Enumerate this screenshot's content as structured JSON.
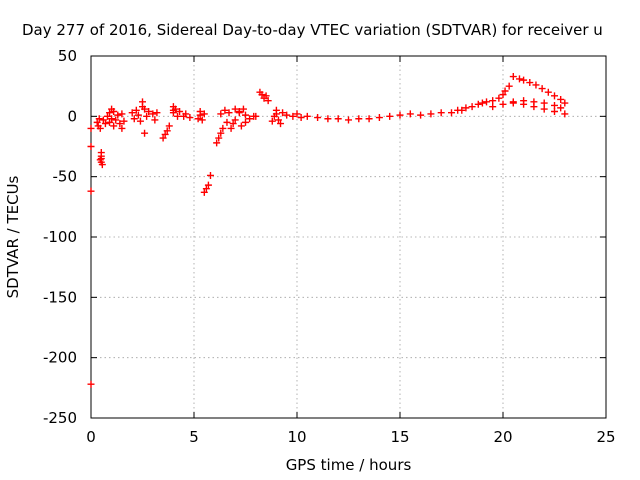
{
  "chart_data": {
    "type": "scatter",
    "title": "Day 277 of 2016, Sidereal Day-to-day VTEC variation (SDTVAR) for receiver u",
    "xlabel": "GPS time / hours",
    "ylabel": "SDTVAR / TECUs",
    "xlim": [
      0,
      25
    ],
    "ylim": [
      -250,
      50
    ],
    "x_ticks": [
      0,
      5,
      10,
      15,
      20,
      25
    ],
    "y_ticks": [
      -250,
      -200,
      -150,
      -100,
      -50,
      0,
      50
    ],
    "x_tick_labels": [
      "0",
      "5",
      "10",
      "15",
      "20",
      "25"
    ],
    "y_tick_labels": [
      "-250",
      "-200",
      "-150",
      "-100",
      "-50",
      "0",
      "50"
    ],
    "grid": true,
    "marker": "+",
    "series": [
      {
        "color": "#ff0000",
        "points": [
          [
            0.0,
            -10
          ],
          [
            0.0,
            -25
          ],
          [
            0.0,
            -62
          ],
          [
            0.0,
            -222
          ],
          [
            0.3,
            -5
          ],
          [
            0.35,
            -8
          ],
          [
            0.4,
            -2
          ],
          [
            0.45,
            -10
          ],
          [
            0.5,
            -30
          ],
          [
            0.5,
            -35
          ],
          [
            0.5,
            -38
          ],
          [
            0.55,
            -40
          ],
          [
            0.5,
            -33
          ],
          [
            0.45,
            -36
          ],
          [
            0.6,
            -3
          ],
          [
            0.7,
            -6
          ],
          [
            0.8,
            0
          ],
          [
            0.9,
            3
          ],
          [
            0.9,
            -5
          ],
          [
            1.0,
            6
          ],
          [
            1.0,
            -2
          ],
          [
            1.1,
            4
          ],
          [
            1.1,
            -8
          ],
          [
            1.2,
            -3
          ],
          [
            1.3,
            1
          ],
          [
            1.4,
            -6
          ],
          [
            1.5,
            -10
          ],
          [
            1.5,
            2
          ],
          [
            1.6,
            -4
          ],
          [
            2.0,
            3
          ],
          [
            2.1,
            -2
          ],
          [
            2.2,
            5
          ],
          [
            2.3,
            1
          ],
          [
            2.4,
            -4
          ],
          [
            2.5,
            12
          ],
          [
            2.5,
            8
          ],
          [
            2.6,
            6
          ],
          [
            2.6,
            -14
          ],
          [
            2.7,
            0
          ],
          [
            2.8,
            4
          ],
          [
            3.0,
            2
          ],
          [
            3.1,
            -3
          ],
          [
            3.2,
            3
          ],
          [
            3.5,
            -18
          ],
          [
            3.6,
            -15
          ],
          [
            3.7,
            -12
          ],
          [
            3.8,
            -8
          ],
          [
            4.0,
            8
          ],
          [
            4.0,
            5
          ],
          [
            4.0,
            3
          ],
          [
            4.1,
            6
          ],
          [
            4.2,
            0
          ],
          [
            4.3,
            4
          ],
          [
            4.5,
            0
          ],
          [
            4.6,
            2
          ],
          [
            4.8,
            -1
          ],
          [
            5.2,
            -2
          ],
          [
            5.3,
            1
          ],
          [
            5.3,
            4
          ],
          [
            5.4,
            -3
          ],
          [
            5.5,
            2
          ],
          [
            5.5,
            -63
          ],
          [
            5.6,
            -60
          ],
          [
            5.7,
            -57
          ],
          [
            5.8,
            -49
          ],
          [
            6.1,
            -22
          ],
          [
            6.2,
            -18
          ],
          [
            6.3,
            -14
          ],
          [
            6.4,
            -10
          ],
          [
            6.3,
            2
          ],
          [
            6.5,
            5
          ],
          [
            6.7,
            3
          ],
          [
            6.6,
            -5
          ],
          [
            6.8,
            -10
          ],
          [
            6.9,
            -6
          ],
          [
            7.0,
            -3
          ],
          [
            7.2,
            4
          ],
          [
            7.4,
            6
          ],
          [
            7.3,
            -8
          ],
          [
            7.5,
            -5
          ],
          [
            7.7,
            -2
          ],
          [
            7.9,
            0
          ],
          [
            7.0,
            6
          ],
          [
            7.2,
            3
          ],
          [
            7.5,
            1
          ],
          [
            8.0,
            0
          ],
          [
            8.2,
            20
          ],
          [
            8.3,
            18
          ],
          [
            8.4,
            15
          ],
          [
            8.5,
            17
          ],
          [
            8.6,
            13
          ],
          [
            8.8,
            -4
          ],
          [
            8.9,
            0
          ],
          [
            9.0,
            2
          ],
          [
            9.0,
            5
          ],
          [
            9.1,
            -3
          ],
          [
            9.2,
            -6
          ],
          [
            9.3,
            3
          ],
          [
            9.5,
            1
          ],
          [
            9.8,
            0
          ],
          [
            10.0,
            2
          ],
          [
            10.2,
            -1
          ],
          [
            10.5,
            0
          ],
          [
            11.0,
            -1
          ],
          [
            11.5,
            -2
          ],
          [
            12.0,
            -2
          ],
          [
            12.5,
            -3
          ],
          [
            13.0,
            -2
          ],
          [
            13.5,
            -2
          ],
          [
            14.0,
            -1
          ],
          [
            14.5,
            0
          ],
          [
            15.0,
            1
          ],
          [
            15.5,
            2
          ],
          [
            16.0,
            1
          ],
          [
            16.5,
            2
          ],
          [
            17.0,
            3
          ],
          [
            17.5,
            3
          ],
          [
            17.8,
            5
          ],
          [
            18.0,
            5
          ],
          [
            18.2,
            7
          ],
          [
            18.5,
            8
          ],
          [
            18.8,
            10
          ],
          [
            19.0,
            11
          ],
          [
            19.2,
            12
          ],
          [
            19.5,
            13
          ],
          [
            19.8,
            15
          ],
          [
            20.0,
            18
          ],
          [
            20.1,
            21
          ],
          [
            20.3,
            25
          ],
          [
            19.5,
            8
          ],
          [
            20.0,
            10
          ],
          [
            20.5,
            11
          ],
          [
            21.0,
            10
          ],
          [
            21.5,
            8
          ],
          [
            22.0,
            6
          ],
          [
            22.5,
            4
          ],
          [
            23.0,
            2
          ],
          [
            20.5,
            33
          ],
          [
            20.8,
            31
          ],
          [
            21.0,
            30
          ],
          [
            21.3,
            28
          ],
          [
            21.6,
            26
          ],
          [
            21.9,
            23
          ],
          [
            22.2,
            20
          ],
          [
            22.5,
            17
          ],
          [
            22.8,
            14
          ],
          [
            23.0,
            11
          ],
          [
            20.5,
            12
          ],
          [
            21.0,
            13
          ],
          [
            21.5,
            12
          ],
          [
            22.0,
            11
          ],
          [
            22.5,
            9
          ],
          [
            22.8,
            7
          ]
        ]
      }
    ]
  }
}
